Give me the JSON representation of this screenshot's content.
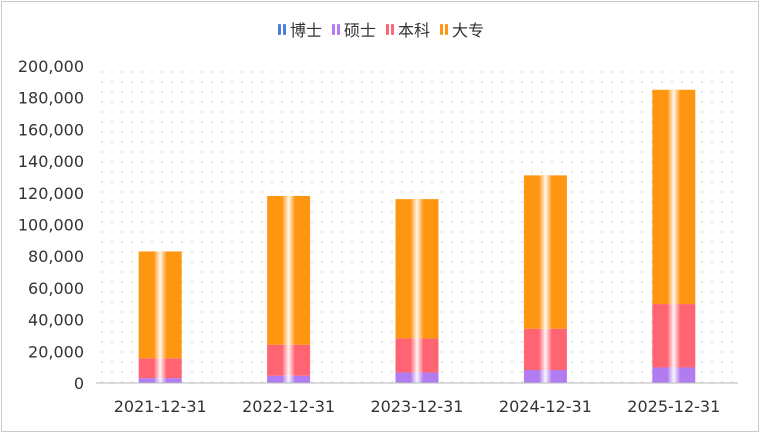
{
  "chart_data": {
    "type": "bar",
    "stacked": true,
    "categories": [
      "2021-12-31",
      "2022-12-31",
      "2023-12-31",
      "2024-12-31",
      "2025-12-31"
    ],
    "series": [
      {
        "name": "博士",
        "color": "#4a7fe0",
        "values": [
          100,
          100,
          150,
          200,
          300
        ]
      },
      {
        "name": "硕士",
        "color": "#b07cf0",
        "values": [
          3000,
          4500,
          6500,
          8000,
          9500
        ]
      },
      {
        "name": "本科",
        "color": "#ff6472",
        "values": [
          12500,
          19500,
          21500,
          26000,
          40000
        ]
      },
      {
        "name": "大专",
        "color": "#ff9612",
        "values": [
          67400,
          93900,
          87850,
          96800,
          135200
        ]
      }
    ],
    "ylim": [
      0,
      200000
    ],
    "yticks": [
      "0",
      "20,000",
      "40,000",
      "60,000",
      "80,000",
      "100,000",
      "120,000",
      "140,000",
      "160,000",
      "180,000",
      "200,000"
    ],
    "legend_position": "top-center",
    "grid": "dotted background"
  }
}
